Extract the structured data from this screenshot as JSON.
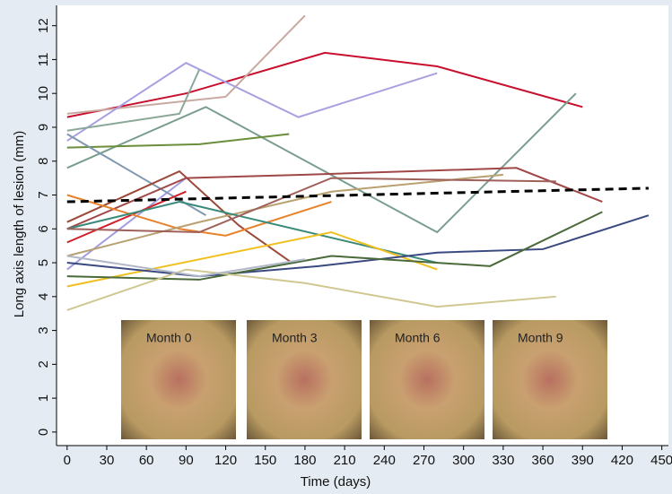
{
  "chart_data": {
    "type": "line",
    "y_label": "Long axis length of lesion (mm)",
    "x_label": "Time (days)",
    "xlim": [
      -8,
      455
    ],
    "ylim": [
      -0.4,
      12.6
    ],
    "xticks": [
      0,
      30,
      60,
      90,
      120,
      150,
      180,
      210,
      240,
      270,
      300,
      330,
      360,
      390,
      420,
      450
    ],
    "yticks": [
      0,
      1,
      2,
      3,
      4,
      5,
      6,
      7,
      8,
      9,
      10,
      11,
      12
    ],
    "insets": [
      "Month 0",
      "Month 3",
      "Month 6",
      "Month 9"
    ],
    "series": [
      {
        "color": "#c8102e",
        "x": [
          0,
          90,
          195,
          280,
          390
        ],
        "values": [
          9.3,
          10.0,
          11.2,
          10.8,
          9.6
        ]
      },
      {
        "color": "#c9a8a0",
        "x": [
          0,
          120,
          180
        ],
        "values": [
          9.4,
          9.9,
          12.3
        ]
      },
      {
        "color": "#a8a0e0",
        "x": [
          0,
          90,
          175,
          280
        ],
        "values": [
          8.6,
          10.9,
          9.3,
          10.6
        ]
      },
      {
        "color": "#a49ce0",
        "x": [
          0,
          90
        ],
        "values": [
          4.8,
          7.5
        ]
      },
      {
        "color": "#8aa898",
        "x": [
          0,
          85,
          100
        ],
        "values": [
          8.9,
          9.4,
          10.7
        ]
      },
      {
        "color": "#7a9e8e",
        "x": [
          0,
          105,
          280,
          385
        ],
        "values": [
          7.8,
          9.6,
          5.9,
          10.0
        ]
      },
      {
        "color": "#6b8e3a",
        "x": [
          0,
          100,
          168
        ],
        "values": [
          8.4,
          8.5,
          8.8
        ]
      },
      {
        "color": "#8098b0",
        "x": [
          0,
          105
        ],
        "values": [
          8.8,
          6.4
        ]
      },
      {
        "color": "#9b4a3a",
        "x": [
          0,
          85,
          130,
          170
        ],
        "values": [
          6.2,
          7.7,
          6.1,
          5.0
        ]
      },
      {
        "color": "#a04848",
        "x": [
          0,
          90,
          180,
          340,
          405
        ],
        "values": [
          6.0,
          7.5,
          7.6,
          7.8,
          6.8
        ]
      },
      {
        "color": "#d0202a",
        "x": [
          0,
          90
        ],
        "values": [
          5.6,
          7.1
        ]
      },
      {
        "color": "#e8822a",
        "x": [
          0,
          85,
          120,
          200
        ],
        "values": [
          7.0,
          6.0,
          5.8,
          6.8
        ]
      },
      {
        "color": "#b8a070",
        "x": [
          0,
          100,
          200,
          330
        ],
        "values": [
          5.2,
          6.2,
          7.1,
          7.6
        ]
      },
      {
        "color": "#3a8a7a",
        "x": [
          0,
          85,
          280
        ],
        "values": [
          6.0,
          6.8,
          5.0
        ]
      },
      {
        "color": "#a0605a",
        "x": [
          0,
          100,
          200,
          370
        ],
        "values": [
          6.0,
          5.9,
          7.5,
          7.4
        ]
      },
      {
        "color": "#f0c020",
        "x": [
          0,
          200,
          280
        ],
        "values": [
          4.3,
          5.9,
          4.8
        ]
      },
      {
        "color": "#3a4a80",
        "x": [
          0,
          100,
          190,
          280,
          360,
          440
        ],
        "values": [
          5.0,
          4.6,
          4.9,
          5.3,
          5.4,
          6.4
        ]
      },
      {
        "color": "#4a6a3a",
        "x": [
          0,
          100,
          200,
          320,
          405
        ],
        "values": [
          4.6,
          4.5,
          5.2,
          4.9,
          6.5
        ]
      },
      {
        "color": "#d0c890",
        "x": [
          0,
          90,
          180,
          280,
          370
        ],
        "values": [
          3.6,
          4.8,
          4.4,
          3.7,
          4.0
        ]
      },
      {
        "color": "#b0b8c8",
        "x": [
          0,
          100,
          180
        ],
        "values": [
          5.2,
          4.6,
          5.1
        ]
      },
      {
        "color": "#000000",
        "dashed": true,
        "x": [
          0,
          440
        ],
        "values": [
          6.8,
          7.2
        ]
      }
    ]
  }
}
